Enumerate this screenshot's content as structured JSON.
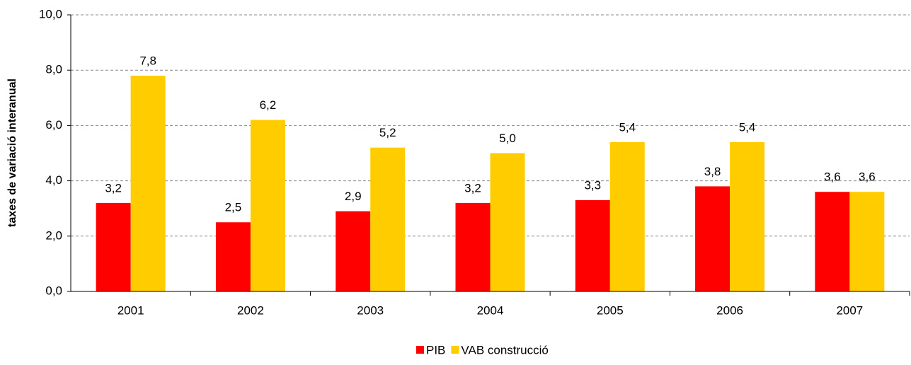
{
  "chart_data": {
    "type": "bar",
    "y_label": "taxes de variació interanual",
    "categories": [
      "2001",
      "2002",
      "2003",
      "2004",
      "2005",
      "2006",
      "2007"
    ],
    "series": [
      {
        "name": "PIB",
        "color": "#ff0000",
        "values": [
          3.2,
          2.5,
          2.9,
          3.2,
          3.3,
          3.8,
          3.6
        ],
        "value_labels": [
          "3,2",
          "2,5",
          "2,9",
          "3,2",
          "3,3",
          "3,8",
          "3,6"
        ]
      },
      {
        "name": "VAB construcció",
        "color": "#ffcc00",
        "values": [
          7.8,
          6.2,
          5.2,
          5.0,
          5.4,
          5.4,
          3.6
        ],
        "value_labels": [
          "7,8",
          "6,2",
          "5,2",
          "5,0",
          "5,4",
          "5,4",
          "3,6"
        ]
      }
    ],
    "ylim": [
      0,
      10
    ],
    "yticks": [
      {
        "value": 0,
        "label": "0,0"
      },
      {
        "value": 2,
        "label": "2,0"
      },
      {
        "value": 4,
        "label": "4,0"
      },
      {
        "value": 6,
        "label": "6,0"
      },
      {
        "value": 8,
        "label": "8,0"
      },
      {
        "value": 10,
        "label": "10,0"
      }
    ],
    "grid": true,
    "legend": "bottom"
  }
}
